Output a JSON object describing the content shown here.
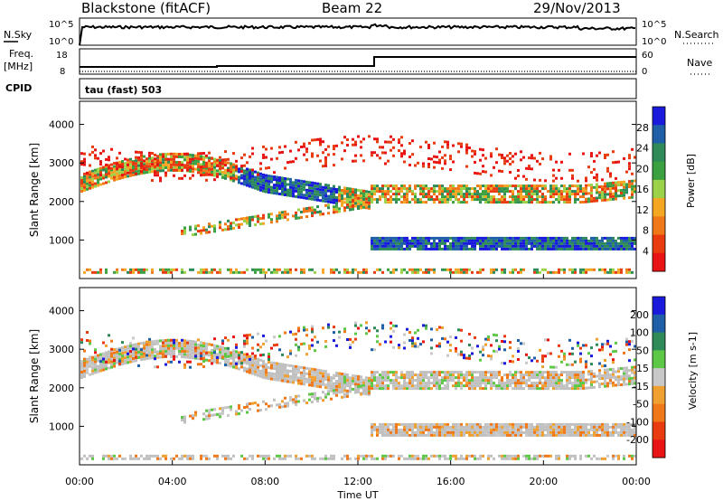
{
  "header": {
    "site": "Blackstone (fitACF)",
    "beam": "Beam 22",
    "date": "29/Nov/2013"
  },
  "top_panels": {
    "nsky_label": "N.Sky",
    "nsky_tick_high": "10^5",
    "nsky_tick_low": "10^0",
    "nsearch_label": "N.Search",
    "nsearch_tick_high": "10^5",
    "nsearch_tick_low": "10^0",
    "freq_label": "Freq.",
    "freq_unit": "[MHz]",
    "freq_tick_high": "18",
    "freq_tick_low": "8",
    "nave_label": "Nave",
    "nave_tick_high": "60",
    "nave_tick_low": "0",
    "cpid_label": "CPID",
    "cpid_value": "tau (fast) 503"
  },
  "colors": {
    "power": [
      "#1a1adc",
      "#1f5fa8",
      "#2f8a5a",
      "#3aa040",
      "#9bd24a",
      "#f5a623",
      "#f07818",
      "#e83c10",
      "#e81414"
    ],
    "velocity": [
      "#1a1adc",
      "#1f5fa8",
      "#2f8a5a",
      "#5cc845",
      "#c8c8c8",
      "#f0a030",
      "#f07818",
      "#e83c10",
      "#e81414"
    ],
    "gray": "#c0c0c0"
  },
  "chart_data": [
    {
      "type": "heatmap",
      "panel": "power",
      "ylabel": "Slant Range [km]",
      "y_ticks": [
        "4000",
        "3000",
        "2000",
        "1000"
      ],
      "colorbar_label": "Power [dB]",
      "colorbar_ticks": [
        "28",
        "24",
        "20",
        "16",
        "12",
        "8",
        "4"
      ]
    },
    {
      "type": "heatmap",
      "panel": "velocity",
      "ylabel": "Slant Range [km]",
      "y_ticks": [
        "4000",
        "3000",
        "2000",
        "1000"
      ],
      "colorbar_label": "Velocity [m s-1]",
      "colorbar_ticks": [
        "200",
        "100",
        "50",
        "15",
        "-15",
        "-50",
        "-100",
        "-200"
      ]
    }
  ],
  "x_axis": {
    "ticks": [
      "00:00",
      "04:00",
      "08:00",
      "12:00",
      "16:00",
      "20:00",
      "00:00"
    ],
    "label": "Time UT"
  }
}
